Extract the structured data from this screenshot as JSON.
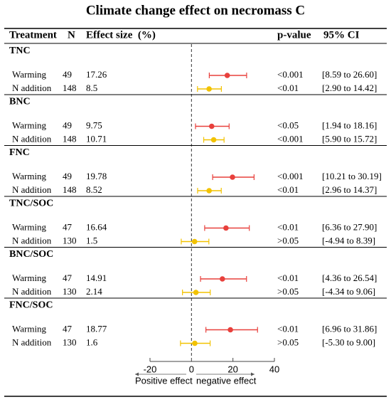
{
  "chart_data": {
    "type": "forest",
    "title": "Climate change effect on necromass C",
    "columns": {
      "treatment": "Treatment",
      "n": "N",
      "effect": "Effect size  (%)",
      "p": "p-value",
      "ci": "95% CI"
    },
    "series": [
      {
        "name": "Warming",
        "color": "#e8403c"
      },
      {
        "name": "N addition",
        "color": "#f2c200"
      }
    ],
    "groups": [
      {
        "name": "TNC",
        "n": [
          49,
          148
        ],
        "values": [
          17.26,
          8.5
        ],
        "ci_low": [
          8.59,
          2.9
        ],
        "ci_high": [
          26.6,
          14.42
        ],
        "p_values": [
          "<0.001",
          "<0.01"
        ],
        "ci_labels": [
          "[8.59 to 26.60]",
          "[2.90 to 14.42]"
        ]
      },
      {
        "name": "BNC",
        "n": [
          49,
          148
        ],
        "values": [
          9.75,
          10.71
        ],
        "ci_low": [
          1.94,
          5.9
        ],
        "ci_high": [
          18.16,
          15.72
        ],
        "p_values": [
          "<0.05",
          "<0.001"
        ],
        "ci_labels": [
          "[1.94 to 18.16]",
          "[5.90 to 15.72]"
        ]
      },
      {
        "name": "FNC",
        "n": [
          49,
          148
        ],
        "values": [
          19.78,
          8.52
        ],
        "ci_low": [
          10.21,
          2.96
        ],
        "ci_high": [
          30.19,
          14.37
        ],
        "p_values": [
          "<0.001",
          "<0.01"
        ],
        "ci_labels": [
          "[10.21 to 30.19]",
          "[2.96 to 14.37]"
        ]
      },
      {
        "name": "TNC/SOC",
        "n": [
          47,
          130
        ],
        "values": [
          16.64,
          1.5
        ],
        "ci_low": [
          6.36,
          -4.94
        ],
        "ci_high": [
          27.9,
          8.39
        ],
        "p_values": [
          "<0.01",
          ">0.05"
        ],
        "ci_labels": [
          "[6.36 to 27.90]",
          "[-4.94 to 8.39]"
        ]
      },
      {
        "name": "BNC/SOC",
        "n": [
          47,
          130
        ],
        "values": [
          14.91,
          2.14
        ],
        "ci_low": [
          4.36,
          -4.34
        ],
        "ci_high": [
          26.54,
          9.06
        ],
        "p_values": [
          "<0.01",
          ">0.05"
        ],
        "ci_labels": [
          "[4.36 to 26.54]",
          "[-4.34 to 9.06]"
        ]
      },
      {
        "name": "FNC/SOC",
        "n": [
          47,
          130
        ],
        "values": [
          18.77,
          1.6
        ],
        "ci_low": [
          6.96,
          -5.3
        ],
        "ci_high": [
          31.86,
          9.0
        ],
        "p_values": [
          "<0.01",
          ">0.05"
        ],
        "ci_labels": [
          "[6.96 to 31.86]",
          "[-5.30 to 9.00]"
        ]
      }
    ],
    "xlim": [
      -20,
      40
    ],
    "xticks": [
      -20,
      0,
      20,
      40
    ],
    "annotations": [
      "Positive effect",
      "negative effect"
    ]
  }
}
